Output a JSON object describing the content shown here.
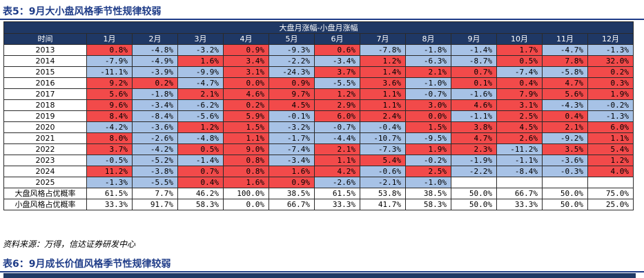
{
  "title1": "表5：9月大小盘风格季节性规律较弱",
  "title2": "表6：9月成长价值风格季节性规律较弱",
  "source": "资料来源：万得，信达证券研发中心",
  "table": {
    "span_header": "大盘月涨幅-小盘月涨幅",
    "corner": "时间",
    "months": [
      "1月",
      "2月",
      "3月",
      "4月",
      "5月",
      "6月",
      "7月",
      "8月",
      "9月",
      "10月",
      "11月",
      "12月"
    ],
    "rows": [
      {
        "year": "2013",
        "values": [
          "0.8%",
          "-4.8%",
          "-3.2%",
          "0.9%",
          "-9.3%",
          "0.6%",
          "-7.8%",
          "-1.8%",
          "-1.4%",
          "1.7%",
          "-4.7%",
          "-1.3%"
        ]
      },
      {
        "year": "2014",
        "values": [
          "-7.9%",
          "-4.9%",
          "1.6%",
          "3.4%",
          "-2.2%",
          "-3.4%",
          "1.2%",
          "-6.3%",
          "-8.7%",
          "0.5%",
          "7.8%",
          "32.0%"
        ]
      },
      {
        "year": "2015",
        "values": [
          "-11.1%",
          "-3.9%",
          "-9.9%",
          "3.1%",
          "-24.3%",
          "3.7%",
          "1.4%",
          "2.1%",
          "0.7%",
          "-7.4%",
          "-5.8%",
          "0.2%"
        ]
      },
      {
        "year": "2016",
        "values": [
          "9.2%",
          "0.2%",
          "-4.7%",
          "0.0%",
          "0.9%",
          "-5.5%",
          "3.6%",
          "-1.0%",
          "0.1%",
          "0.4%",
          "4.7%",
          "0.3%"
        ]
      },
      {
        "year": "2017",
        "values": [
          "5.6%",
          "-1.8%",
          "2.1%",
          "4.6%",
          "9.7%",
          "1.2%",
          "1.1%",
          "-0.7%",
          "-1.6%",
          "7.9%",
          "5.6%",
          "1.9%"
        ]
      },
      {
        "year": "2018",
        "values": [
          "9.6%",
          "-3.4%",
          "-6.2%",
          "0.2%",
          "4.5%",
          "2.9%",
          "1.1%",
          "3.0%",
          "4.6%",
          "3.1%",
          "-4.3%",
          "-0.2%"
        ]
      },
      {
        "year": "2019",
        "values": [
          "8.4%",
          "-8.4%",
          "-5.6%",
          "5.9%",
          "-0.1%",
          "6.0%",
          "2.4%",
          "0.0%",
          "-1.1%",
          "2.5%",
          "0.4%",
          "-1.3%"
        ]
      },
      {
        "year": "2020",
        "values": [
          "-4.2%",
          "-3.6%",
          "1.2%",
          "1.5%",
          "-3.2%",
          "-0.7%",
          "-0.4%",
          "1.5%",
          "3.8%",
          "4.5%",
          "2.1%",
          "6.0%"
        ]
      },
      {
        "year": "2021",
        "values": [
          "8.0%",
          "-2.6%",
          "-4.8%",
          "1.1%",
          "-1.7%",
          "-4.4%",
          "-10.7%",
          "-9.5%",
          "4.7%",
          "2.6%",
          "-9.2%",
          "1.1%"
        ]
      },
      {
        "year": "2022",
        "values": [
          "3.7%",
          "-4.2%",
          "0.5%",
          "9.0%",
          "-7.4%",
          "2.1%",
          "-7.3%",
          "1.9%",
          "2.3%",
          "-11.2%",
          "3.5%",
          "5.4%"
        ]
      },
      {
        "year": "2023",
        "values": [
          "-0.5%",
          "-5.2%",
          "-1.4%",
          "0.8%",
          "-3.4%",
          "1.1%",
          "5.4%",
          "-0.2%",
          "-1.9%",
          "-1.1%",
          "-3.6%",
          "1.2%"
        ]
      },
      {
        "year": "2024",
        "values": [
          "11.2%",
          "-3.8%",
          "0.7%",
          "0.8%",
          "1.6%",
          "4.2%",
          "-0.6%",
          "2.5%",
          "-2.2%",
          "-8.4%",
          "-0.3%",
          "4.0%"
        ]
      },
      {
        "year": "2025",
        "values": [
          "-1.3%",
          "-5.5%",
          "0.4%",
          "1.6%",
          "0.9%",
          "-2.6%",
          "-2.1%",
          "-1.0%",
          "",
          "",
          "",
          ""
        ]
      }
    ],
    "summary": [
      {
        "label": "大盘风格占优概率",
        "values": [
          "61.5%",
          "7.7%",
          "46.2%",
          "100.0%",
          "38.5%",
          "61.5%",
          "53.8%",
          "38.5%",
          "50.0%",
          "66.7%",
          "50.0%",
          "75.0%"
        ]
      },
      {
        "label": "小盘风格占优概率",
        "values": [
          "33.3%",
          "91.7%",
          "58.3%",
          "0.0%",
          "66.7%",
          "33.3%",
          "41.7%",
          "58.3%",
          "50.0%",
          "33.3%",
          "50.0%",
          "25.0%"
        ]
      }
    ],
    "colors": {
      "positive": "#f24a4a",
      "negative": "#a7c2e6",
      "header": "#1f3865",
      "title": "#1f3c88"
    }
  }
}
